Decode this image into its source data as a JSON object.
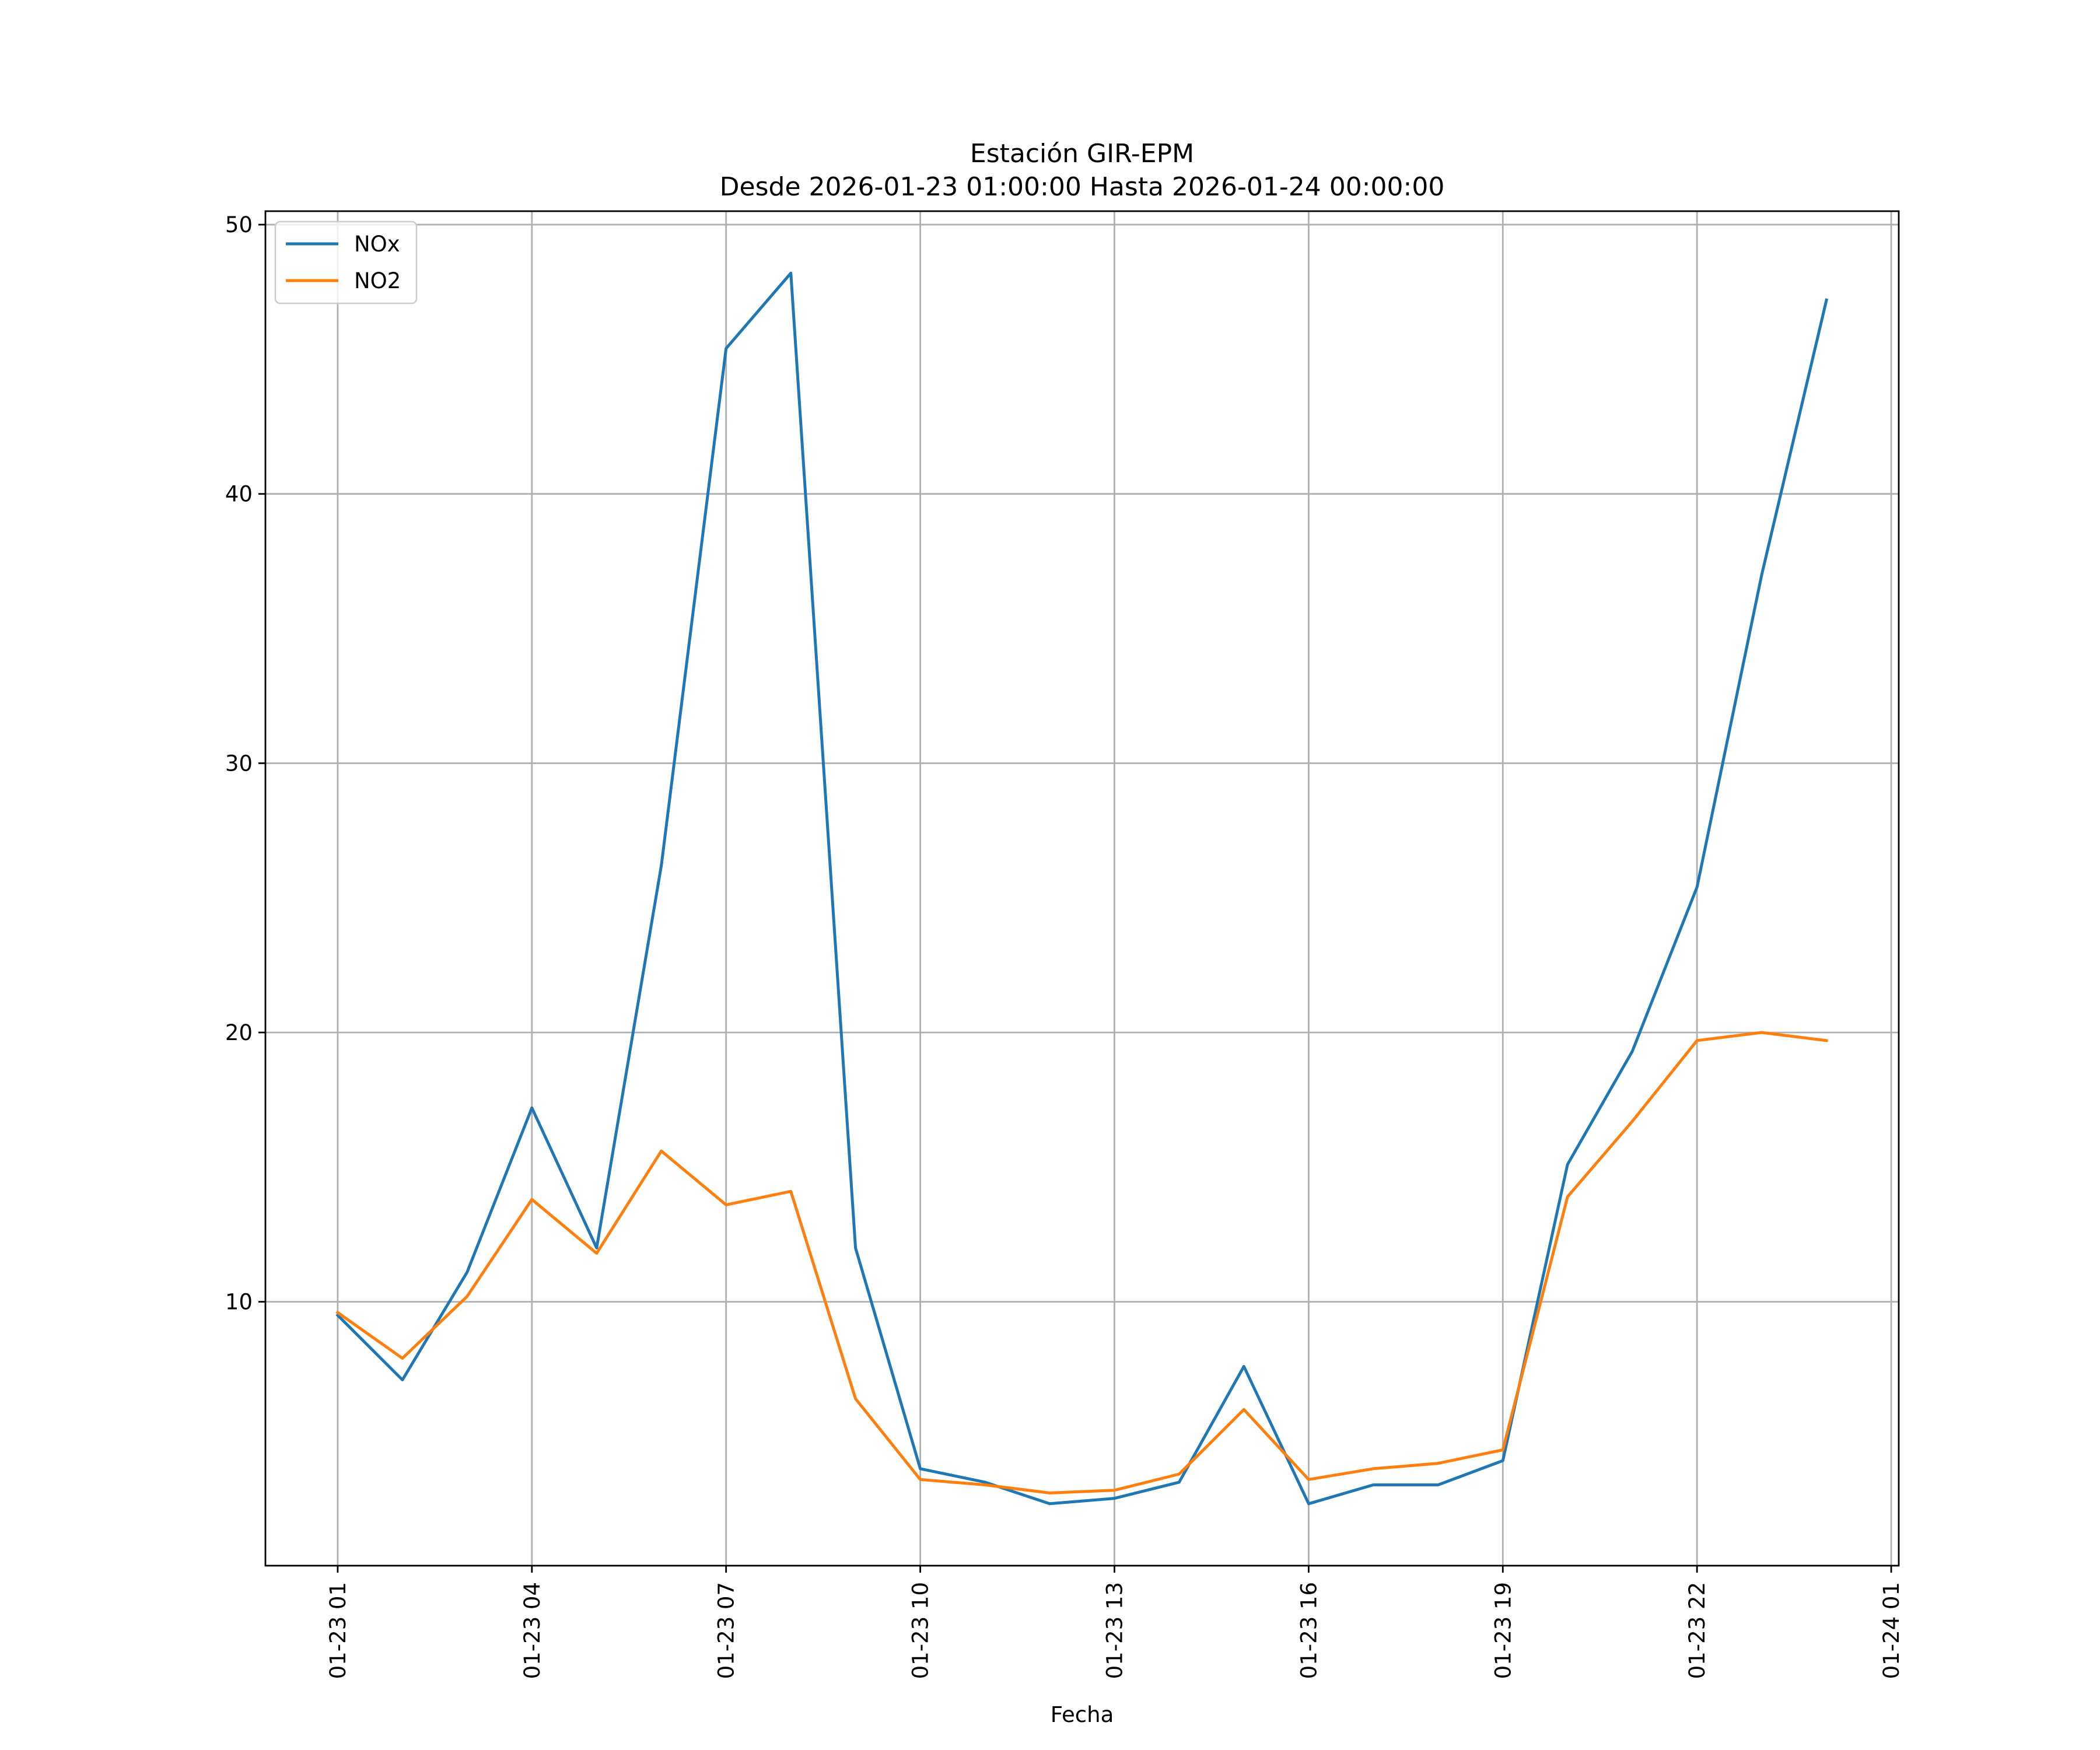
{
  "chart_data": {
    "type": "line",
    "title": "Estación GIR-EPM",
    "subtitle": "Desde 2026-01-23 01:00:00 Hasta 2026-01-24 00:00:00",
    "xlabel": "Fecha",
    "ylabel": "",
    "x": [
      "2026-01-23 01:00",
      "2026-01-23 02:00",
      "2026-01-23 03:00",
      "2026-01-23 04:00",
      "2026-01-23 05:00",
      "2026-01-23 06:00",
      "2026-01-23 07:00",
      "2026-01-23 08:00",
      "2026-01-23 09:00",
      "2026-01-23 10:00",
      "2026-01-23 11:00",
      "2026-01-23 12:00",
      "2026-01-23 13:00",
      "2026-01-23 14:00",
      "2026-01-23 15:00",
      "2026-01-23 16:00",
      "2026-01-23 17:00",
      "2026-01-23 18:00",
      "2026-01-23 19:00",
      "2026-01-23 20:00",
      "2026-01-23 21:00",
      "2026-01-23 22:00",
      "2026-01-23 23:00",
      "2026-01-24 00:00"
    ],
    "x_ticks": [
      {
        "value": "2026-01-23 01:00",
        "label": "01-23 01"
      },
      {
        "value": "2026-01-23 04:00",
        "label": "01-23 04"
      },
      {
        "value": "2026-01-23 07:00",
        "label": "01-23 07"
      },
      {
        "value": "2026-01-23 10:00",
        "label": "01-23 10"
      },
      {
        "value": "2026-01-23 13:00",
        "label": "01-23 13"
      },
      {
        "value": "2026-01-23 16:00",
        "label": "01-23 16"
      },
      {
        "value": "2026-01-23 19:00",
        "label": "01-23 19"
      },
      {
        "value": "2026-01-23 22:00",
        "label": "01-23 22"
      },
      {
        "value": "2026-01-24 01:00",
        "label": "01-24 01"
      }
    ],
    "xlim": [
      "2026-01-22 23:53",
      "2026-01-24 01:07"
    ],
    "y_ticks": [
      10,
      20,
      30,
      40,
      50
    ],
    "ylim": [
      0.2,
      50.5
    ],
    "grid": true,
    "legend_position": "upper left",
    "series": [
      {
        "name": "NOx",
        "color": "#1f77b4",
        "values": [
          9.5,
          7.1,
          11.1,
          17.2,
          12.0,
          26.2,
          45.4,
          48.2,
          12.0,
          3.8,
          3.3,
          2.5,
          2.7,
          3.3,
          7.6,
          2.5,
          3.2,
          3.2,
          4.1,
          15.1,
          19.3,
          25.4,
          37.0,
          47.2
        ]
      },
      {
        "name": "NO2",
        "color": "#ff7f0e",
        "values": [
          9.6,
          7.9,
          10.2,
          13.8,
          11.8,
          15.6,
          13.6,
          14.1,
          6.4,
          3.4,
          3.2,
          2.9,
          3.0,
          3.6,
          6.0,
          3.4,
          3.8,
          4.0,
          4.5,
          13.9,
          16.7,
          19.7,
          20.0,
          19.7
        ]
      }
    ]
  }
}
